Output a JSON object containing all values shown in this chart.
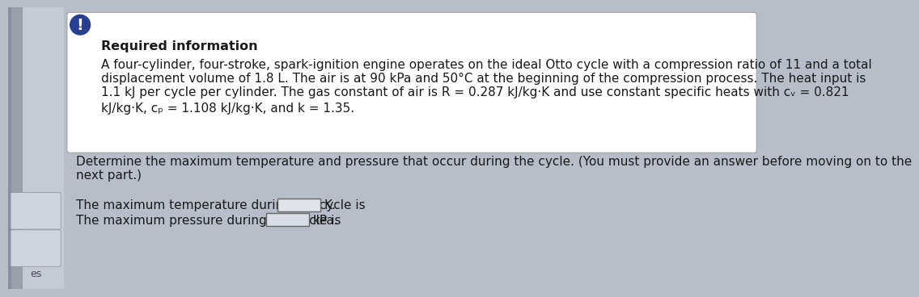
{
  "page_bg": "#b8bec8",
  "sidebar_bg": "#c8cdd6",
  "box_bg": "#ffffff",
  "box_border": "#aaaaaa",
  "alert_color": "#2a3f8f",
  "body_text_color": "#1a1a1a",
  "required_info_label": "Required information",
  "info_line1": "A four-cylinder, four-stroke, spark-ignition engine operates on the ideal Otto cycle with a compression ratio of 11 and a total",
  "info_line2": "displacement volume of 1.8 L. The air is at 90 kPa and 50°C at the beginning of the compression process. The heat input is",
  "info_line3": "1.1 kJ per cycle per cylinder. The gas constant of air is R = 0.287 kJ/kg·K and use constant specific heats with cᵥ = 0.821",
  "info_line4": "kJ/kg·K, cₚ = 1.108 kJ/kg·K, and k = 1.35.",
  "q_line1": "Determine the maximum temperature and pressure that occur during the cycle. (You must provide an answer before moving on to the",
  "q_line2": "next part.)",
  "ans1_pre": "The maximum temperature during the cycle is",
  "ans1_post": "K.",
  "ans2_pre": "The maximum pressure during the cycle is",
  "ans2_post": "kPa.",
  "left_label": "es",
  "font_size": 11.0,
  "font_size_required": 11.5
}
